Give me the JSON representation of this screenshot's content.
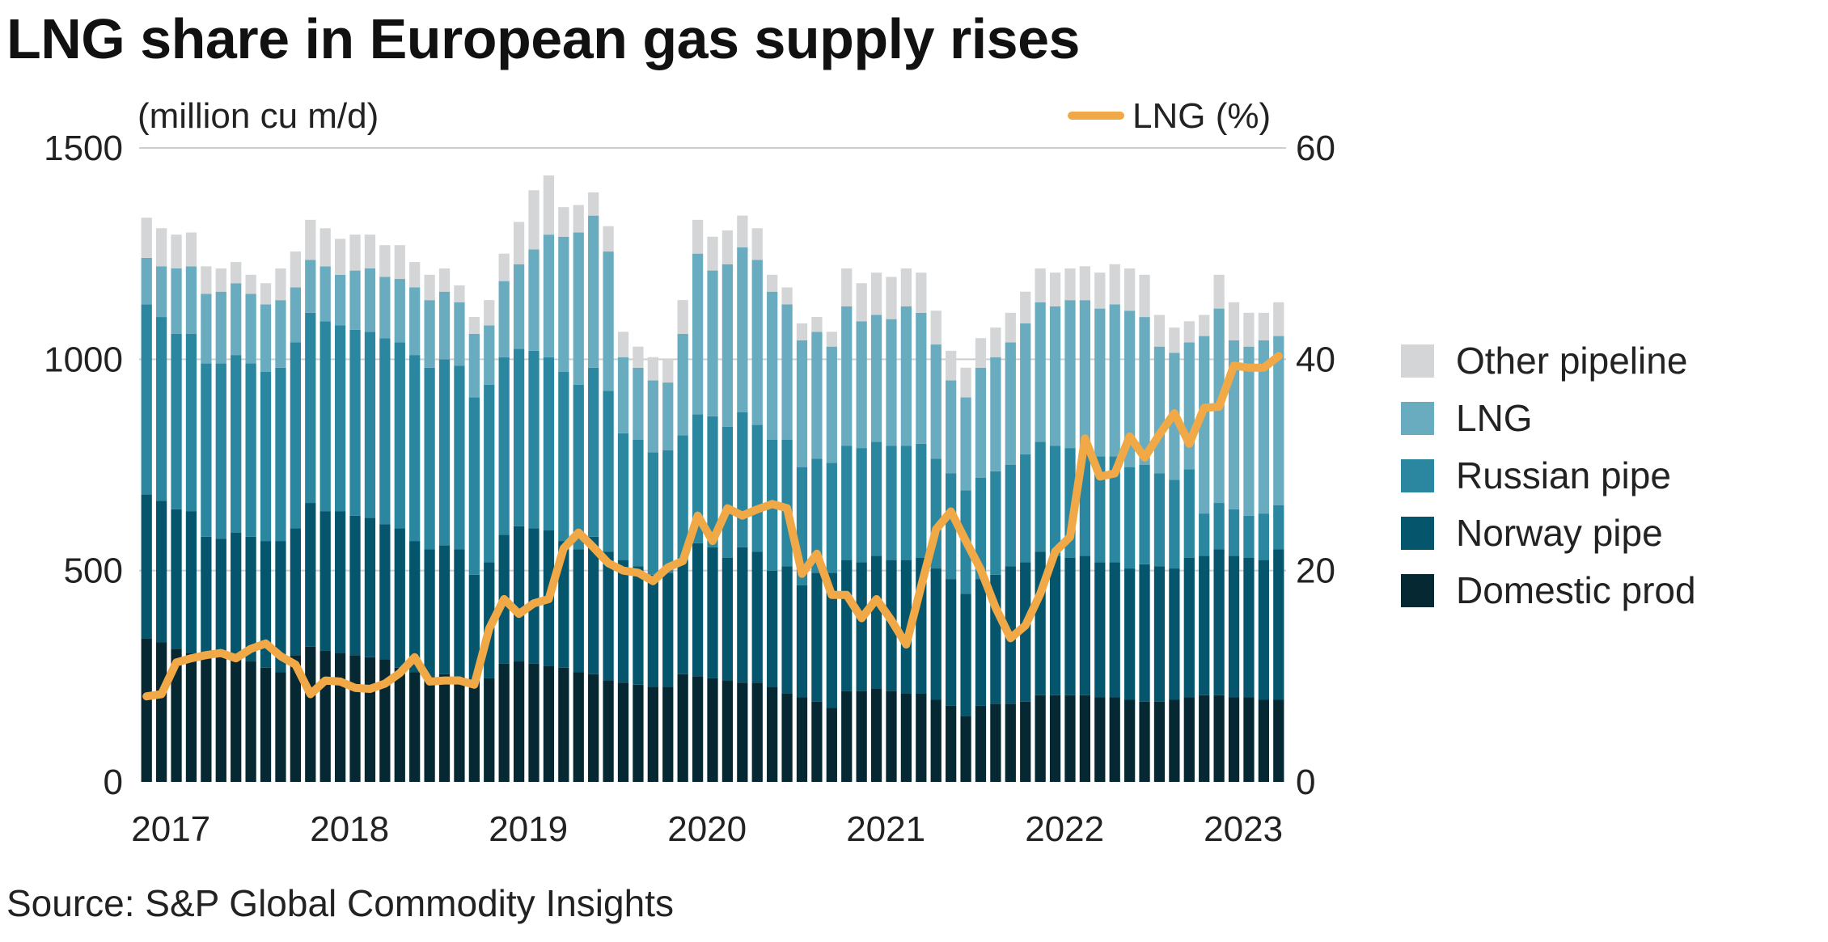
{
  "title": "LNG share in European gas supply rises",
  "source": "Source: S&P Global Commodity Insights",
  "colors": {
    "domestic": "#062833",
    "norway": "#05566c",
    "russian": "#2a879f",
    "lng_bar": "#6aacbf",
    "other": "#d3d5d6",
    "lng_line": "#f0a946",
    "grid": "#cfcfcf"
  },
  "chart_data": {
    "type": "bar",
    "stacked": true,
    "left_axis_label": "(million cu m/d)",
    "left_ylim": [
      0,
      1500
    ],
    "left_ticks": [
      "0",
      "500",
      "1000",
      "1500"
    ],
    "right_ylim": [
      0,
      60
    ],
    "right_ticks": [
      "0",
      "20",
      "40",
      "60"
    ],
    "x_tick_labels": [
      "2017",
      "2018",
      "2019",
      "2020",
      "2021",
      "2022",
      "2023"
    ],
    "legend": [
      "Other pipeline",
      "LNG",
      "Russian pipe",
      "Norway pipe",
      "Domestic prod"
    ],
    "line_legend": "LNG (%)",
    "grid": "horizontal",
    "months": [
      "2017-01",
      "2017-02",
      "2017-03",
      "2017-04",
      "2017-05",
      "2017-06",
      "2017-07",
      "2017-08",
      "2017-09",
      "2017-10",
      "2017-11",
      "2017-12",
      "2018-01",
      "2018-02",
      "2018-03",
      "2018-04",
      "2018-05",
      "2018-06",
      "2018-07",
      "2018-08",
      "2018-09",
      "2018-10",
      "2018-11",
      "2018-12",
      "2019-01",
      "2019-02",
      "2019-03",
      "2019-04",
      "2019-05",
      "2019-06",
      "2019-07",
      "2019-08",
      "2019-09",
      "2019-10",
      "2019-11",
      "2019-12",
      "2020-01",
      "2020-02",
      "2020-03",
      "2020-04",
      "2020-05",
      "2020-06",
      "2020-07",
      "2020-08",
      "2020-09",
      "2020-10",
      "2020-11",
      "2020-12",
      "2021-01",
      "2021-02",
      "2021-03",
      "2021-04",
      "2021-05",
      "2021-06",
      "2021-07",
      "2021-08",
      "2021-09",
      "2021-10",
      "2021-11",
      "2021-12",
      "2022-01",
      "2022-02",
      "2022-03",
      "2022-04",
      "2022-05",
      "2022-06",
      "2022-07",
      "2022-08",
      "2022-09",
      "2022-10",
      "2022-11",
      "2022-12",
      "2023-01",
      "2023-02",
      "2023-03",
      "2023-04",
      "2023-05"
    ],
    "series": [
      {
        "name": "Domestic prod",
        "values": [
          340,
          330,
          315,
          305,
          300,
          295,
          290,
          285,
          270,
          260,
          300,
          320,
          310,
          305,
          300,
          295,
          290,
          270,
          260,
          250,
          255,
          250,
          240,
          245,
          280,
          285,
          280,
          275,
          270,
          260,
          255,
          240,
          235,
          230,
          225,
          225,
          255,
          250,
          245,
          240,
          235,
          235,
          225,
          210,
          200,
          190,
          175,
          215,
          215,
          220,
          215,
          210,
          210,
          195,
          180,
          155,
          180,
          185,
          185,
          190,
          205,
          205,
          205,
          205,
          200,
          200,
          195,
          190,
          190,
          195,
          200,
          205,
          205,
          200,
          200,
          195,
          195
        ]
      },
      {
        "name": "Norway pipe",
        "values": [
          340,
          335,
          330,
          335,
          280,
          280,
          300,
          295,
          300,
          310,
          300,
          340,
          330,
          335,
          330,
          330,
          320,
          330,
          310,
          300,
          305,
          300,
          250,
          275,
          305,
          320,
          320,
          320,
          300,
          290,
          325,
          305,
          290,
          280,
          265,
          270,
          270,
          315,
          310,
          290,
          320,
          310,
          275,
          300,
          265,
          305,
          320,
          310,
          305,
          315,
          310,
          315,
          320,
          310,
          300,
          290,
          300,
          305,
          325,
          330,
          340,
          330,
          325,
          330,
          320,
          320,
          310,
          325,
          320,
          310,
          330,
          330,
          345,
          335,
          330,
          330,
          355
        ]
      },
      {
        "name": "Russian pipe",
        "values": [
          450,
          435,
          415,
          420,
          410,
          415,
          420,
          410,
          400,
          410,
          440,
          450,
          450,
          440,
          440,
          440,
          440,
          440,
          440,
          430,
          440,
          435,
          420,
          420,
          420,
          420,
          420,
          410,
          400,
          390,
          400,
          380,
          300,
          300,
          290,
          290,
          295,
          305,
          310,
          310,
          320,
          300,
          310,
          300,
          280,
          270,
          260,
          270,
          270,
          270,
          270,
          270,
          270,
          260,
          250,
          245,
          240,
          245,
          240,
          255,
          260,
          260,
          260,
          255,
          250,
          250,
          240,
          235,
          220,
          210,
          210,
          100,
          110,
          110,
          100,
          110,
          105
        ]
      },
      {
        "name": "LNG",
        "values": [
          110,
          120,
          155,
          160,
          165,
          170,
          170,
          165,
          160,
          160,
          130,
          125,
          130,
          120,
          140,
          150,
          145,
          150,
          160,
          160,
          160,
          150,
          150,
          140,
          180,
          200,
          240,
          290,
          320,
          360,
          360,
          330,
          180,
          170,
          170,
          160,
          240,
          380,
          345,
          385,
          390,
          390,
          350,
          320,
          300,
          300,
          275,
          330,
          300,
          300,
          300,
          330,
          310,
          270,
          220,
          220,
          260,
          270,
          290,
          310,
          330,
          330,
          350,
          350,
          350,
          360,
          370,
          350,
          300,
          300,
          300,
          420,
          460,
          400,
          400,
          410,
          400
        ]
      },
      {
        "name": "Other pipeline",
        "values": [
          95,
          90,
          80,
          80,
          65,
          55,
          50,
          45,
          50,
          75,
          85,
          95,
          90,
          85,
          85,
          80,
          75,
          80,
          60,
          60,
          55,
          40,
          40,
          60,
          65,
          100,
          140,
          140,
          70,
          65,
          55,
          60,
          60,
          50,
          55,
          55,
          80,
          80,
          80,
          80,
          75,
          75,
          40,
          40,
          40,
          35,
          35,
          90,
          90,
          100,
          100,
          90,
          95,
          80,
          70,
          70,
          70,
          70,
          70,
          75,
          80,
          80,
          75,
          80,
          85,
          95,
          100,
          100,
          75,
          60,
          50,
          50,
          80,
          90,
          80,
          65,
          80
        ]
      },
      {
        "name": "LNG (%)",
        "axis": "right",
        "values": [
          8.1,
          8.3,
          11.3,
          11.7,
          12.0,
          12.2,
          11.7,
          12.6,
          13.1,
          11.9,
          11.1,
          8.3,
          9.6,
          9.5,
          8.9,
          8.8,
          9.3,
          10.3,
          11.8,
          9.5,
          9.6,
          9.6,
          9.2,
          14.5,
          17.3,
          15.9,
          16.9,
          17.3,
          22.1,
          23.6,
          22.2,
          20.7,
          20.0,
          19.8,
          19.0,
          20.3,
          20.9,
          25.2,
          22.8,
          25.9,
          25.2,
          25.8,
          26.3,
          25.9,
          19.7,
          21.6,
          17.7,
          17.7,
          15.5,
          17.3,
          15.3,
          13.0,
          18.5,
          23.9,
          25.6,
          22.8,
          20.1,
          16.5,
          13.6,
          14.8,
          17.8,
          21.8,
          23.2,
          32.5,
          28.9,
          29.2,
          32.7,
          30.7,
          32.9,
          34.9,
          32.0,
          35.4,
          35.5,
          39.4,
          39.2,
          39.2,
          40.3
        ]
      }
    ]
  }
}
